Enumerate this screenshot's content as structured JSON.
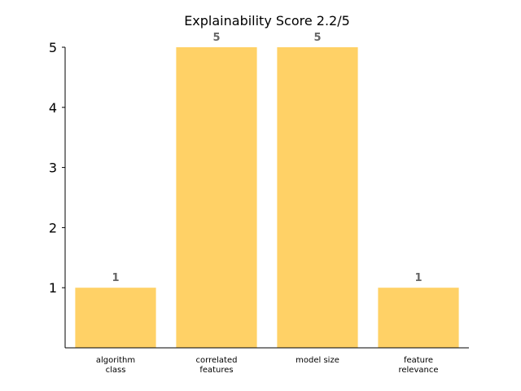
{
  "chart_data": {
    "type": "bar",
    "title": "Explainability Score 2.2/5",
    "categories": [
      [
        "algorithm",
        "class"
      ],
      [
        "correlated",
        "features"
      ],
      [
        "model size"
      ],
      [
        "feature",
        "relevance"
      ]
    ],
    "values": [
      1,
      5,
      5,
      1
    ],
    "data_labels": [
      "1",
      "5",
      "5",
      "1"
    ],
    "yticks": [
      1,
      2,
      3,
      4,
      5
    ],
    "ylim": [
      0,
      5
    ],
    "xlabel": "",
    "ylabel": "",
    "grid": false,
    "bar_color": "#ffd166",
    "label_color": "#666666"
  }
}
